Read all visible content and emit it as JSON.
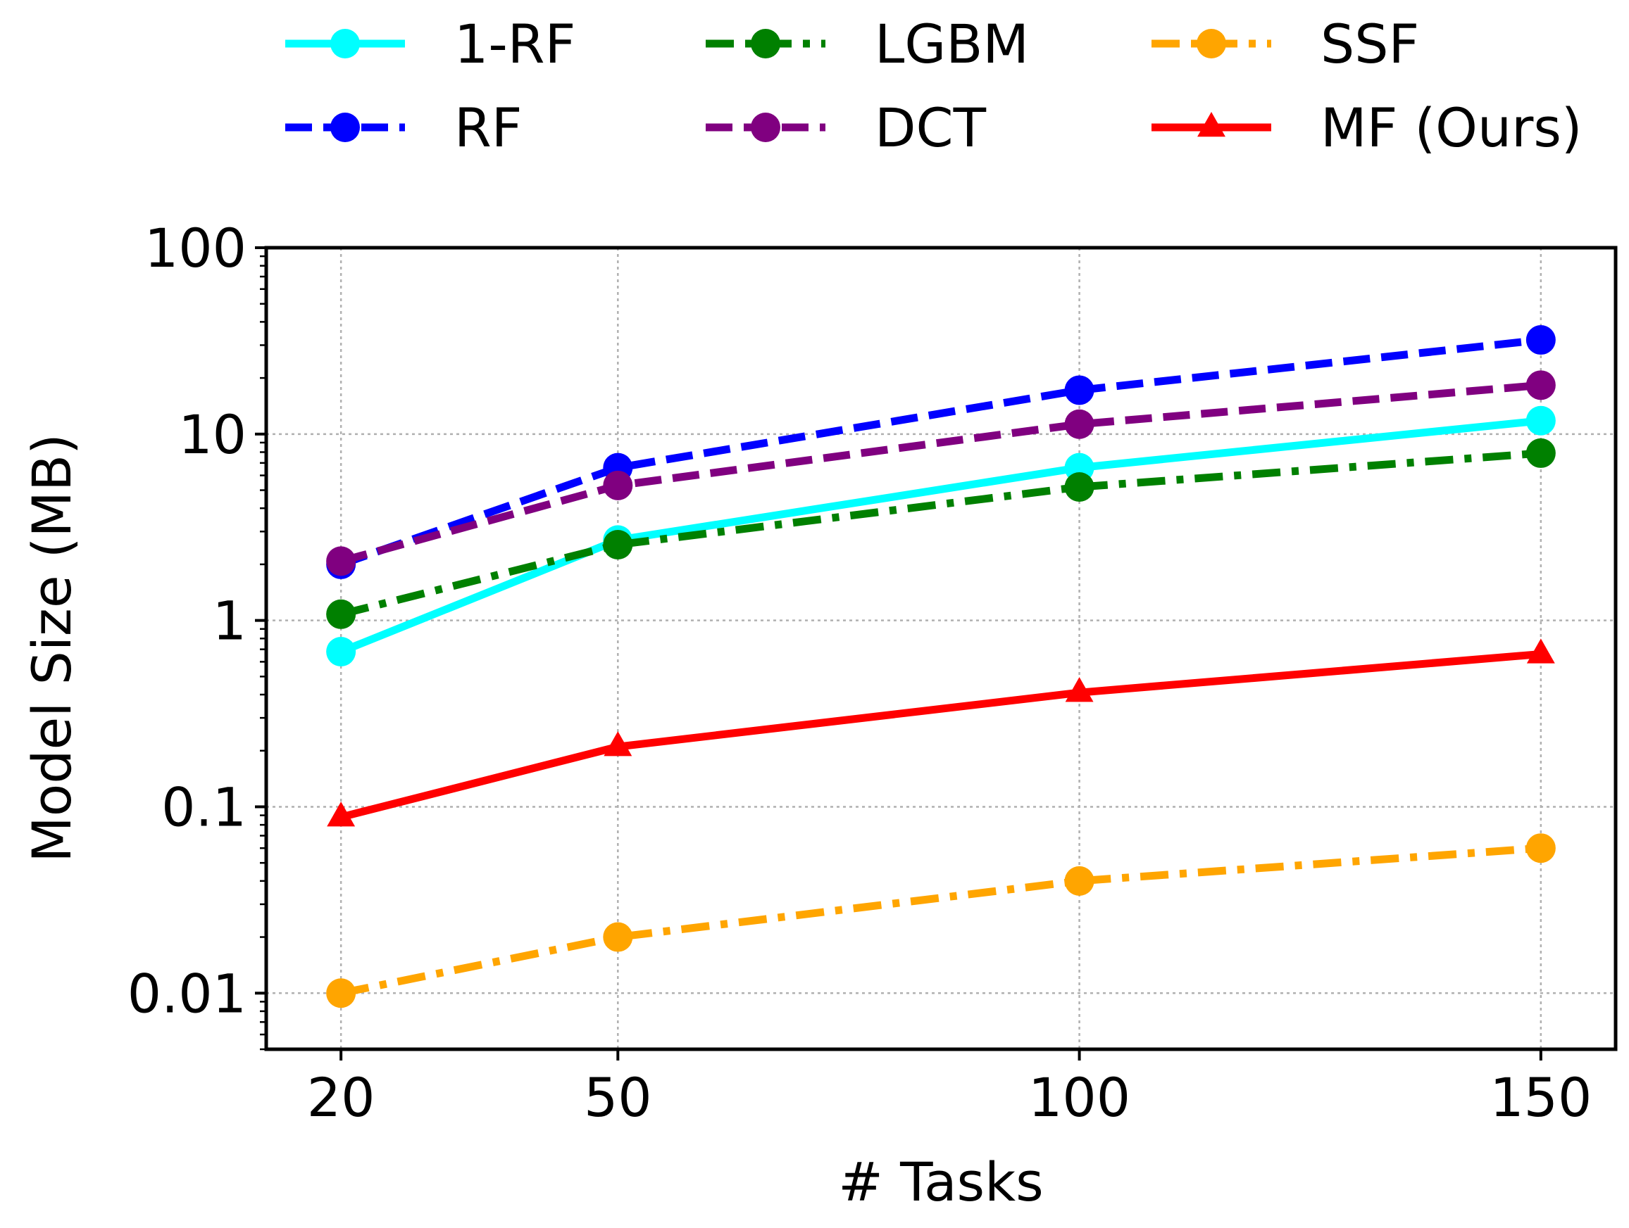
{
  "chart_data": {
    "type": "line",
    "title": "",
    "xlabel": "# Tasks",
    "ylabel": "Model Size (MB)",
    "yscale": "log",
    "ylim": [
      0.005,
      100
    ],
    "xlim": [
      11.9,
      158.1
    ],
    "x": [
      20,
      50,
      100,
      150
    ],
    "x_tick_labels": [
      "20",
      "50",
      "100",
      "150"
    ],
    "y_ticks": [
      0.01,
      0.1,
      1,
      10,
      100
    ],
    "y_tick_labels": [
      "0.01",
      "0.1",
      "1",
      "10",
      "100"
    ],
    "grid": true,
    "legend_position": "top",
    "series": [
      {
        "name": "1-RF",
        "values": [
          0.68,
          2.7,
          6.6,
          11.8
        ],
        "color": "#00ffff",
        "linestyle": "solid",
        "marker": "circle"
      },
      {
        "name": "RF",
        "values": [
          2.0,
          6.6,
          17.2,
          32.0
        ],
        "color": "#0000ff",
        "linestyle": "dashed",
        "marker": "circle"
      },
      {
        "name": "LGBM",
        "values": [
          1.08,
          2.55,
          5.2,
          7.9
        ],
        "color": "#008000",
        "linestyle": "dashdot",
        "marker": "circle"
      },
      {
        "name": "DCT",
        "values": [
          2.08,
          5.3,
          11.3,
          18.3
        ],
        "color": "#800080",
        "linestyle": "dashed",
        "marker": "circle"
      },
      {
        "name": "SSF",
        "values": [
          0.01,
          0.02,
          0.04,
          0.06
        ],
        "color": "#ffa500",
        "linestyle": "dashdot",
        "marker": "circle"
      },
      {
        "name": "MF (Ours)",
        "values": [
          0.088,
          0.21,
          0.41,
          0.66
        ],
        "color": "#ff0000",
        "linestyle": "solid",
        "marker": "triangle"
      }
    ]
  }
}
